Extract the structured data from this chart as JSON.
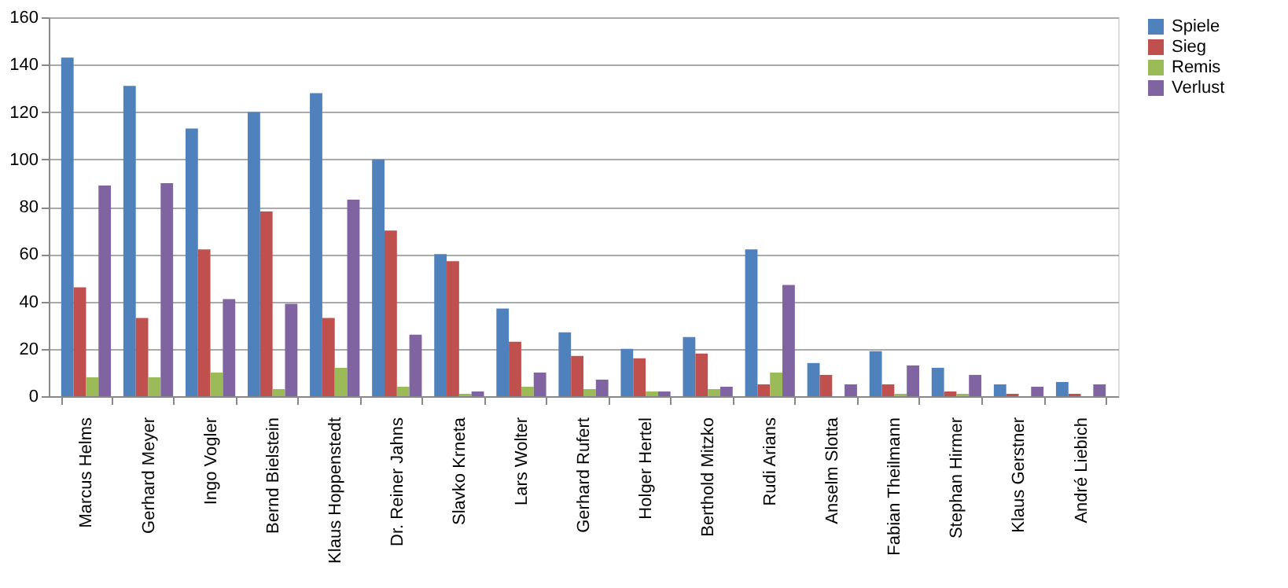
{
  "chart_data": {
    "type": "bar",
    "categories": [
      "Marcus Helms",
      "Gerhard Meyer",
      "Ingo Vogler",
      "Bernd Bielstein",
      "Klaus Hoppenstedt",
      "Dr. Reiner Jahns",
      "Slavko Krneta",
      "Lars Wolter",
      "Gerhard Rufert",
      "Holger Hertel",
      "Berthold Mitzko",
      "Rudi Arians",
      "Anselm Slotta",
      "Fabian Theilmann",
      "Stephan Hirmer",
      "Klaus Gerstner",
      "André Liebich"
    ],
    "series": [
      {
        "name": "Spiele",
        "color": "#4f81bd",
        "values": [
          143,
          131,
          113,
          120,
          128,
          100,
          60,
          37,
          27,
          20,
          25,
          62,
          14,
          19,
          12,
          5,
          6
        ]
      },
      {
        "name": "Sieg",
        "color": "#c0504d",
        "values": [
          46,
          33,
          62,
          78,
          33,
          70,
          57,
          23,
          17,
          16,
          18,
          5,
          9,
          5,
          2,
          1,
          1
        ]
      },
      {
        "name": "Remis",
        "color": "#9bbb59",
        "values": [
          8,
          8,
          10,
          3,
          12,
          4,
          1,
          4,
          3,
          2,
          3,
          10,
          0,
          1,
          1,
          0,
          0
        ]
      },
      {
        "name": "Verlust",
        "color": "#8064a2",
        "values": [
          89,
          90,
          41,
          39,
          83,
          26,
          2,
          10,
          7,
          2,
          4,
          47,
          5,
          13,
          9,
          4,
          5
        ]
      }
    ],
    "ylim": [
      0,
      160
    ],
    "yticks": [
      0,
      20,
      40,
      60,
      80,
      100,
      120,
      140,
      160
    ],
    "grid": "y",
    "legend": "right"
  }
}
